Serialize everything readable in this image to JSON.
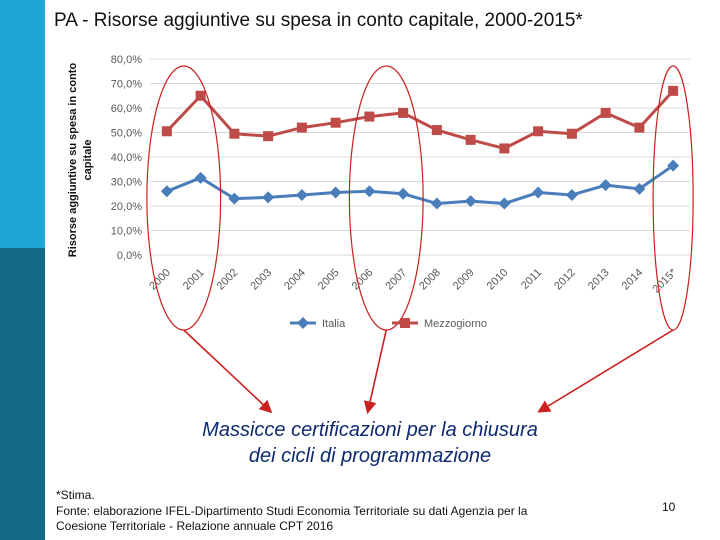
{
  "slide": {
    "title": "PA - Risorse aggiuntive su spesa in conto capitale, 2000-2015*",
    "callout_line1": "Massicce certificazioni per la chiusura",
    "callout_line2": "dei cicli di programmazione",
    "footnote_star": "*Stima.",
    "footnote_source_line1": "Fonte: elaborazione IFEL-Dipartimento Studi Economia Territoriale su dati Agenzia per la",
    "footnote_source_line2": "Coesione Territoriale - Relazione annuale CPT 2016",
    "page_number": "10",
    "colors": {
      "sidebar_top": "#1ea6d8",
      "sidebar_bottom": "#156a8a",
      "callout_text": "#0e2a6e",
      "annotation": "#cc1f1f"
    }
  },
  "chart_data": {
    "type": "line",
    "title": "",
    "xlabel": "",
    "ylabel": "Risorse aggiuntive su spesa in conto capitale",
    "ylabel_lines": [
      "Risorse aggiuntive su spesa in conto",
      "capitale"
    ],
    "ylim": [
      0,
      80
    ],
    "yticks": [
      0,
      10,
      20,
      30,
      40,
      50,
      60,
      70,
      80
    ],
    "ytick_labels": [
      "0,0%",
      "10,0%",
      "20,0%",
      "30,0%",
      "40,0%",
      "50,0%",
      "60,0%",
      "70,0%",
      "80,0%"
    ],
    "grid": true,
    "legend_position": "bottom",
    "categories": [
      "2000",
      "2001",
      "2002",
      "2003",
      "2004",
      "2005",
      "2006",
      "2007",
      "2008",
      "2009",
      "2010",
      "2011",
      "2012",
      "2013",
      "2014",
      "2015*"
    ],
    "series": [
      {
        "name": "Italia",
        "color": "#4a7ebb",
        "marker": "diamond",
        "values": [
          26,
          31.5,
          23,
          23.5,
          24.5,
          25.5,
          26,
          25,
          21,
          22,
          21,
          25.5,
          24.5,
          28.5,
          27,
          36.5
        ]
      },
      {
        "name": "Mezzogiorno",
        "color": "#be4b48",
        "marker": "square",
        "values": [
          50.5,
          65,
          49.5,
          48.5,
          52,
          54,
          56.5,
          58,
          51,
          47,
          43.5,
          50.5,
          49.5,
          58,
          52,
          67
        ]
      }
    ],
    "annotations": {
      "highlighted_periods": [
        [
          "2000",
          "2001"
        ],
        [
          "2006",
          "2007"
        ],
        [
          "2015*"
        ]
      ]
    }
  }
}
